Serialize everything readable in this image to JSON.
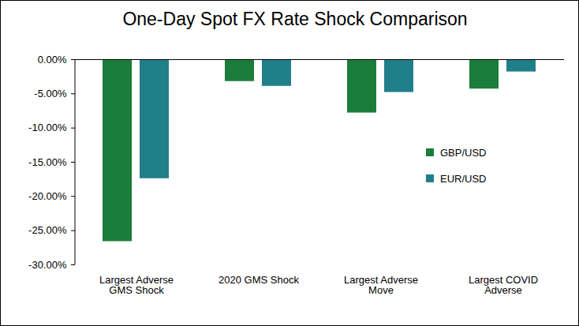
{
  "chart_data": {
    "type": "bar",
    "title": "One-Day Spot FX Rate Shock Comparison",
    "categories": [
      "Largest Adverse GMS Shock",
      "2020 GMS Shock",
      "Largest Adverse Move",
      "Largest COVID Adverse"
    ],
    "series": [
      {
        "name": "GBP/USD",
        "color": "#1a7d3a",
        "values": [
          -26.6,
          -3.2,
          -7.8,
          -4.3
        ]
      },
      {
        "name": "EUR/USD",
        "color": "#217f8a",
        "values": [
          -17.4,
          -3.9,
          -4.8,
          -1.8
        ]
      }
    ],
    "ylim": [
      -30,
      0
    ],
    "yticks": [
      {
        "value": -30,
        "label": "-30.00%"
      },
      {
        "value": -25,
        "label": "-25.00%"
      },
      {
        "value": -20,
        "label": "-20.00%"
      },
      {
        "value": -15,
        "label": "-15.00%"
      },
      {
        "value": -10,
        "label": "-10.00%"
      },
      {
        "value": -5,
        "label": "-5.00%"
      },
      {
        "value": 0,
        "label": "0.00%"
      }
    ],
    "grid": false,
    "legend": "right"
  }
}
